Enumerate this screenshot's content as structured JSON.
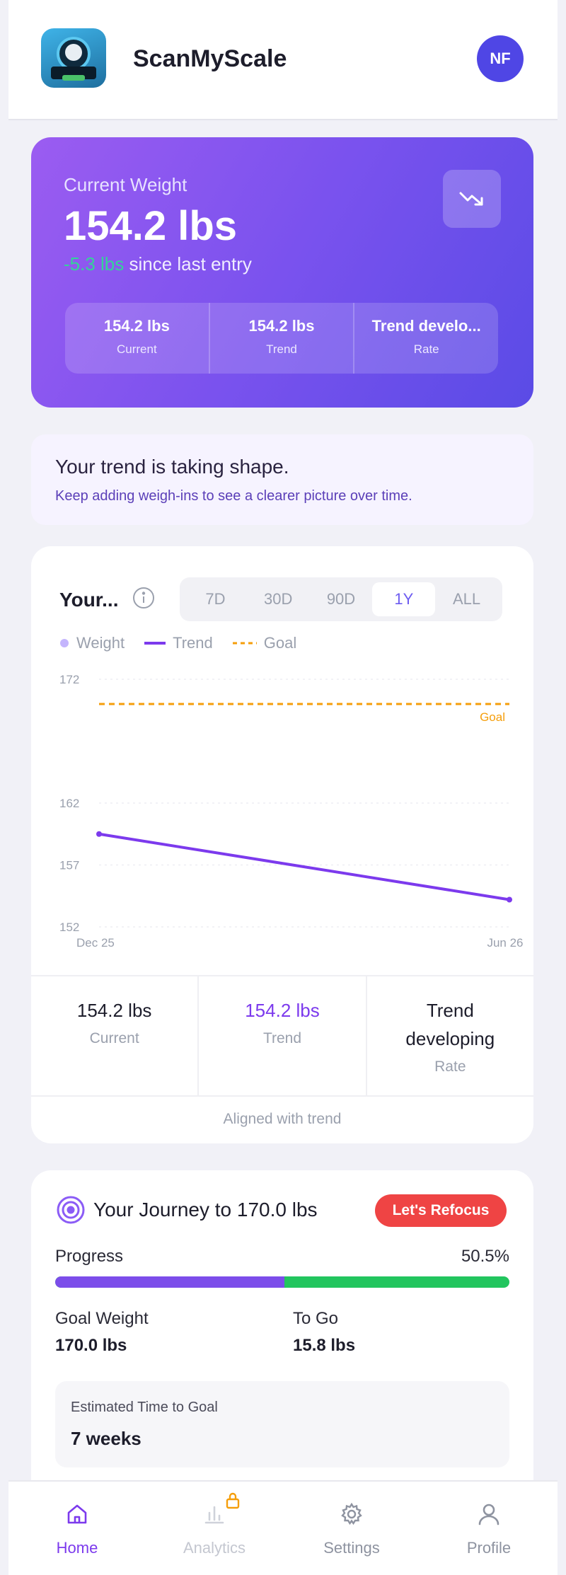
{
  "header": {
    "app_name": "ScanMyScale",
    "avatar_initials": "NF"
  },
  "hero": {
    "label": "Current Weight",
    "weight": "154.2 lbs",
    "delta_value": "-5.3 lbs",
    "delta_suffix": " since last entry",
    "stats": [
      {
        "value": "154.2 lbs",
        "label": "Current"
      },
      {
        "value": "154.2 lbs",
        "label": "Trend"
      },
      {
        "value": "Trend develo...",
        "label": "Rate"
      }
    ]
  },
  "info": {
    "title": "Your trend is taking shape.",
    "subtitle": "Keep adding weigh-ins to see a clearer picture over time."
  },
  "chart_card": {
    "title": "Your...",
    "ranges": [
      "7D",
      "30D",
      "90D",
      "1Y",
      "ALL"
    ],
    "active_range": "1Y",
    "legend": [
      "Weight",
      "Trend",
      "Goal"
    ],
    "goal_label": "Goal",
    "stats": [
      {
        "value": "154.2 lbs",
        "label": "Current"
      },
      {
        "value": "154.2 lbs",
        "label": "Trend"
      },
      {
        "value": "Trend developing",
        "label": "Rate"
      }
    ],
    "footer": "Aligned with trend"
  },
  "chart_data": {
    "type": "line",
    "x_labels": [
      "Dec 25",
      "Jun 26"
    ],
    "y_ticks": [
      152,
      157,
      162,
      172
    ],
    "ylim": [
      152,
      172
    ],
    "series": [
      {
        "name": "Trend",
        "x": [
          "Dec 25",
          "Jun 26"
        ],
        "values": [
          159.5,
          154.2
        ]
      },
      {
        "name": "Goal",
        "x": [
          "Dec 25",
          "Jun 26"
        ],
        "values": [
          170.0,
          170.0
        ]
      }
    ],
    "colors": {
      "trend": "#7c3aed",
      "goal": "#f59e0b",
      "weight": "#c4b5fd"
    },
    "grid": true,
    "legend_position": "top-left"
  },
  "journey": {
    "title": "Your Journey to 170.0 lbs",
    "badge": "Let's Refocus",
    "progress_label": "Progress",
    "progress_percent_text": "50.5%",
    "progress_fraction": 0.505,
    "goal_weight_label": "Goal Weight",
    "goal_weight_value": "170.0 lbs",
    "to_go_label": "To Go",
    "to_go_value": "15.8 lbs",
    "eta_label": "Estimated Time to Goal",
    "eta_value": "7 weeks"
  },
  "nav": [
    {
      "label": "Home",
      "icon": "home-icon",
      "state": "active"
    },
    {
      "label": "Analytics",
      "icon": "bar-chart-icon",
      "state": "locked"
    },
    {
      "label": "Settings",
      "icon": "gear-icon",
      "state": "normal"
    },
    {
      "label": "Profile",
      "icon": "user-icon",
      "state": "normal"
    }
  ]
}
